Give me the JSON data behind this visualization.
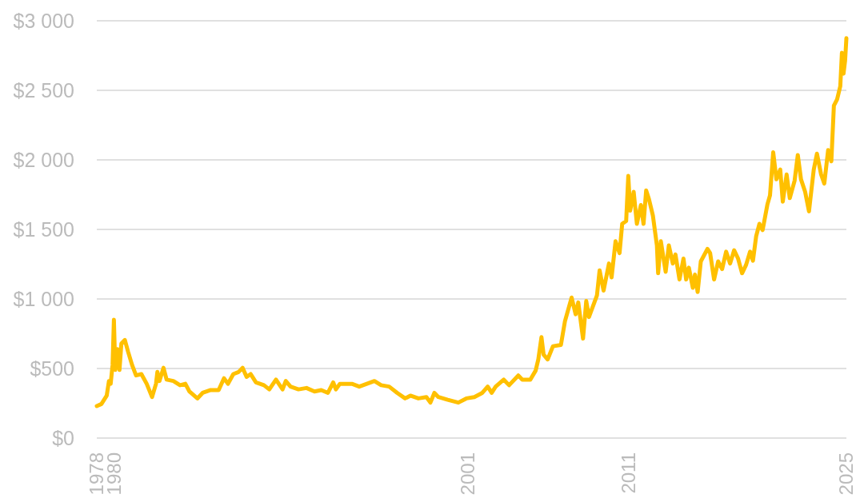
{
  "chart_data": {
    "type": "line",
    "x": [
      "1978-12-29",
      "1979-04-12",
      "1979-08-09",
      "1979-09-28",
      "1979-11-05",
      "1979-12-18",
      "1980-01-17",
      "1980-02-17",
      "1980-04-05",
      "1980-05-21",
      "1980-07-03",
      "1980-09-19",
      "1980-12-01",
      "1981-02-28",
      "1981-05-28",
      "1981-09-25",
      "1982-01-22",
      "1982-05-22",
      "1982-08-19",
      "1982-09-19",
      "1982-11-04",
      "1983-02-03",
      "1983-04-14",
      "1983-09-13",
      "1984-02-09",
      "1984-06-08",
      "1984-09-06",
      "1985-03-05",
      "1985-07-01",
      "1985-12-28",
      "1986-06-25",
      "1986-10-23",
      "1987-01-21",
      "1987-05-20",
      "1987-09-16",
      "1987-12-14",
      "1988-03-14",
      "1988-06-12",
      "1988-10-10",
      "1989-04-07",
      "1989-08-05",
      "1990-01-02",
      "1990-05-30",
      "1990-08-10",
      "1990-11-25",
      "1991-05-23",
      "1991-11-18",
      "1992-05-16",
      "1992-10-15",
      "1993-03-13",
      "1993-07-10",
      "1993-09-08",
      "1993-12-07",
      "1994-09-02",
      "1995-02-15",
      "1996-01-21",
      "1996-06-20",
      "1996-12-17",
      "1997-06-15",
      "1997-12-10",
      "1998-04-08",
      "1998-10-04",
      "1999-04-02",
      "1999-07-01",
      "1999-09-28",
      "1999-12-27",
      "2000-07-24",
      "2001-03-19",
      "2001-09-15",
      "2002-03-13",
      "2002-09-08",
      "2003-01-07",
      "2003-04-06",
      "2003-07-05",
      "2004-01-02",
      "2004-05-01",
      "2004-11-24",
      "2005-02-22",
      "2005-08-20",
      "2005-12-18",
      "2006-02-16",
      "2006-04-28",
      "2006-06-15",
      "2006-09-13",
      "2007-01-11",
      "2007-07-09",
      "2007-10-07",
      "2008-03-05",
      "2008-06-03",
      "2008-08-01",
      "2008-11-16",
      "2009-01-27",
      "2009-03-29",
      "2009-09-24",
      "2009-11-23",
      "2010-02-20",
      "2010-06-21",
      "2010-08-19",
      "2010-11-16",
      "2011-02-14",
      "2011-04-14",
      "2011-07-12",
      "2011-08-29",
      "2011-10-10",
      "2011-12-28",
      "2012-03-09",
      "2012-06-07",
      "2012-08-05",
      "2012-10-03",
      "2012-12-03",
      "2013-03-03",
      "2013-06-01",
      "2013-06-29",
      "2013-08-29",
      "2013-12-15",
      "2014-02-24",
      "2014-05-25",
      "2014-07-23",
      "2014-10-21",
      "2015-01-19",
      "2015-03-19",
      "2015-05-19",
      "2015-08-17",
      "2015-10-03",
      "2015-12-03",
      "2016-02-12",
      "2016-07-10",
      "2016-09-08",
      "2016-12-06",
      "2017-03-07",
      "2017-06-04",
      "2017-09-02",
      "2017-12-01",
      "2018-03-01",
      "2018-05-29",
      "2018-08-26",
      "2018-11-24",
      "2019-02-22",
      "2019-04-27",
      "2019-07-08",
      "2019-09-19",
      "2019-11-30",
      "2020-03-17",
      "2020-05-14",
      "2020-07-25",
      "2020-10-05",
      "2020-12-30",
      "2021-02-25",
      "2021-05-22",
      "2021-08-01",
      "2021-11-17",
      "2022-01-28",
      "2022-04-10",
      "2022-07-12",
      "2022-10-06",
      "2023-01-21",
      "2023-04-03",
      "2023-07-05",
      "2023-09-15",
      "2023-12-10",
      "2024-02-20",
      "2024-04-17",
      "2024-06-28",
      "2024-09-08",
      "2024-10-14",
      "2024-11-19",
      "2024-12-25",
      "2025-01-23"
    ],
    "series": [
      {
        "color": "#ffc000",
        "values": [
          230,
          245,
          305,
          410,
          390,
          525,
          850,
          490,
          640,
          490,
          680,
          705,
          620,
          525,
          450,
          460,
          390,
          295,
          390,
          475,
          410,
          505,
          420,
          410,
          380,
          390,
          335,
          285,
          325,
          345,
          345,
          430,
          390,
          460,
          475,
          505,
          440,
          460,
          400,
          380,
          350,
          420,
          350,
          410,
          370,
          350,
          360,
          335,
          345,
          325,
          400,
          350,
          390,
          390,
          370,
          410,
          380,
          370,
          325,
          285,
          305,
          285,
          295,
          255,
          325,
          295,
          275,
          255,
          285,
          295,
          325,
          370,
          325,
          370,
          420,
          380,
          450,
          420,
          420,
          485,
          565,
          725,
          600,
          565,
          660,
          670,
          840,
          1010,
          890,
          975,
          715,
          985,
          870,
          1025,
          1205,
          1060,
          1255,
          1155,
          1415,
          1330,
          1540,
          1560,
          1885,
          1635,
          1770,
          1540,
          1675,
          1540,
          1780,
          1720,
          1600,
          1385,
          1185,
          1415,
          1195,
          1385,
          1255,
          1320,
          1140,
          1290,
          1140,
          1225,
          1080,
          1175,
          1050,
          1270,
          1360,
          1330,
          1140,
          1270,
          1215,
          1340,
          1255,
          1350,
          1290,
          1185,
          1245,
          1340,
          1275,
          1450,
          1540,
          1495,
          1680,
          1745,
          2055,
          1860,
          1930,
          1700,
          1895,
          1725,
          1850,
          2035,
          1860,
          1770,
          1630,
          1930,
          2045,
          1895,
          1830,
          2070,
          1990,
          2390,
          2435,
          2530,
          2770,
          2620,
          2715,
          2875
        ]
      }
    ],
    "xlim": [
      "1978-12-29",
      "2025-01-23"
    ],
    "xticks": [
      {
        "value": "1978-12-29",
        "label": "1978"
      },
      {
        "value": "1980-01-21",
        "label": "1980"
      },
      {
        "value": "2001-10-22",
        "label": "2001"
      },
      {
        "value": "2011-09-06",
        "label": "2011"
      },
      {
        "value": "2025-01-23",
        "label": "2025"
      }
    ],
    "ylim": [
      0,
      3000
    ],
    "yticks": [
      {
        "value": 0,
        "label": "$0"
      },
      {
        "value": 500,
        "label": "$500"
      },
      {
        "value": 1000,
        "label": "$1 000"
      },
      {
        "value": 1500,
        "label": "$1 500"
      },
      {
        "value": 2000,
        "label": "$2 000"
      },
      {
        "value": 2500,
        "label": "$2 500"
      },
      {
        "value": 3000,
        "label": "$3 000"
      }
    ],
    "grid": "y",
    "line_style": "solid"
  }
}
